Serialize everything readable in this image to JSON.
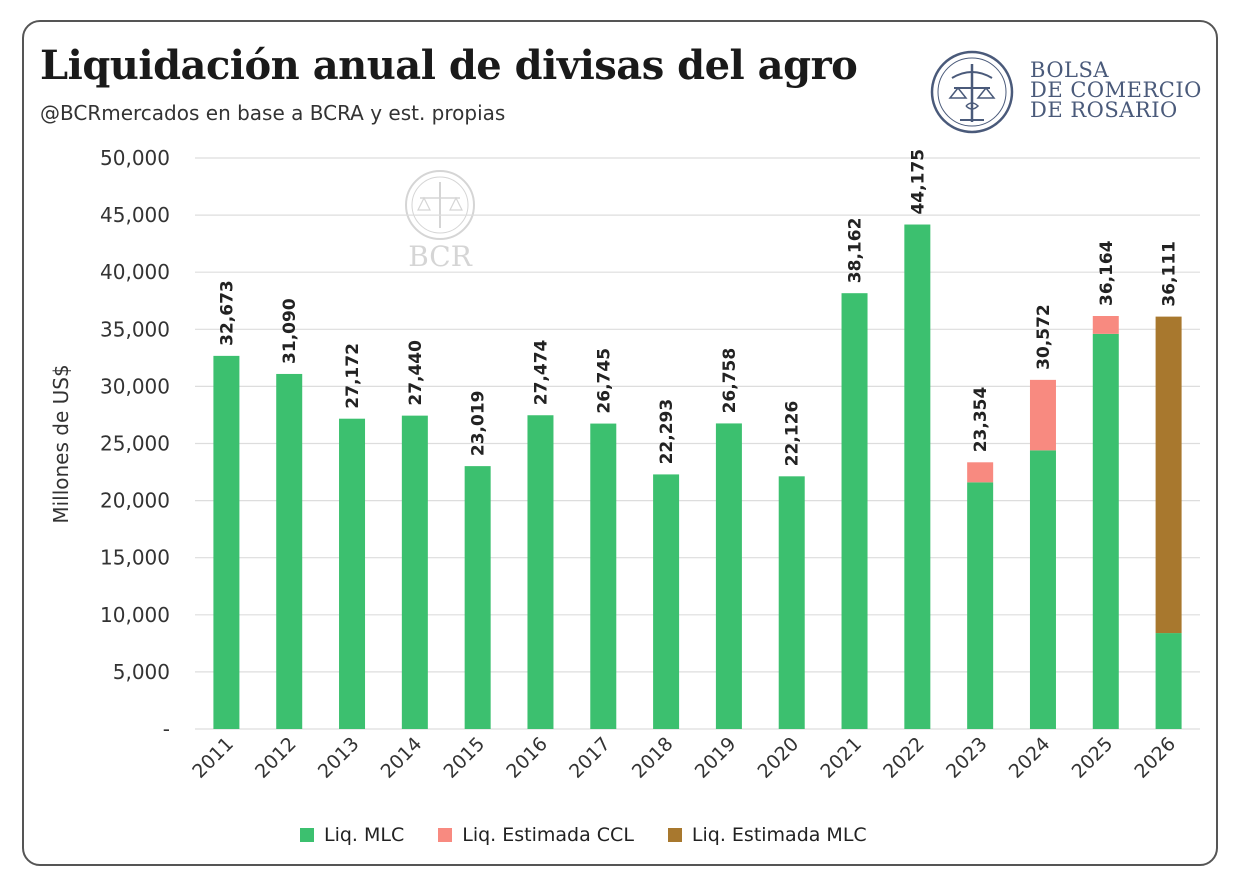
{
  "header": {
    "title": "Liquidación anual de divisas del agro",
    "subtitle": "@BCRmercados en base a BCRA y est. propias"
  },
  "logo": {
    "lines": [
      "BOLSA",
      "DE COMERCIO",
      "DE ROSARIO"
    ],
    "watermark": "BCR"
  },
  "colors": {
    "mlc": "#3cc06f",
    "ccl": "#f88a80",
    "est_mlc": "#a8782e",
    "grid": "#dddddd",
    "logo": "#4a5a7a"
  },
  "chart_data": {
    "type": "bar",
    "stacked": true,
    "ylabel": "Millones de US$",
    "ylim": [
      0,
      50000
    ],
    "yticks": [
      0,
      5000,
      10000,
      15000,
      20000,
      25000,
      30000,
      35000,
      40000,
      45000,
      50000
    ],
    "ytick_labels": [
      "-",
      "5,000",
      "10,000",
      "15,000",
      "20,000",
      "25,000",
      "30,000",
      "35,000",
      "40,000",
      "45,000",
      "50,000"
    ],
    "categories": [
      "2011",
      "2012",
      "2013",
      "2014",
      "2015",
      "2016",
      "2017",
      "2018",
      "2019",
      "2020",
      "2021",
      "2022",
      "2023",
      "2024",
      "2025",
      "2026"
    ],
    "series": [
      {
        "name": "Liq. MLC",
        "color": "#3cc06f",
        "values": [
          32673,
          31090,
          27172,
          27440,
          23019,
          27474,
          26745,
          22293,
          26758,
          22126,
          38162,
          44175,
          21600,
          24400,
          34600,
          8400
        ]
      },
      {
        "name": "Liq. Estimada CCL",
        "color": "#f88a80",
        "values": [
          0,
          0,
          0,
          0,
          0,
          0,
          0,
          0,
          0,
          0,
          0,
          0,
          1754,
          6172,
          1564,
          0
        ]
      },
      {
        "name": "Liq. Estimada MLC",
        "color": "#a8782e",
        "values": [
          0,
          0,
          0,
          0,
          0,
          0,
          0,
          0,
          0,
          0,
          0,
          0,
          0,
          0,
          0,
          27711
        ]
      }
    ],
    "totals": [
      32673,
      31090,
      27172,
      27440,
      23019,
      27474,
      26745,
      22293,
      26758,
      22126,
      38162,
      44175,
      23354,
      30572,
      36164,
      36111
    ],
    "total_labels": [
      "32,673",
      "31,090",
      "27,172",
      "27,440",
      "23,019",
      "27,474",
      "26,745",
      "22,293",
      "26,758",
      "22,126",
      "38,162",
      "44,175",
      "23,354",
      "30,572",
      "36,164",
      "36,111"
    ],
    "legend_position": "bottom",
    "grid": true
  }
}
